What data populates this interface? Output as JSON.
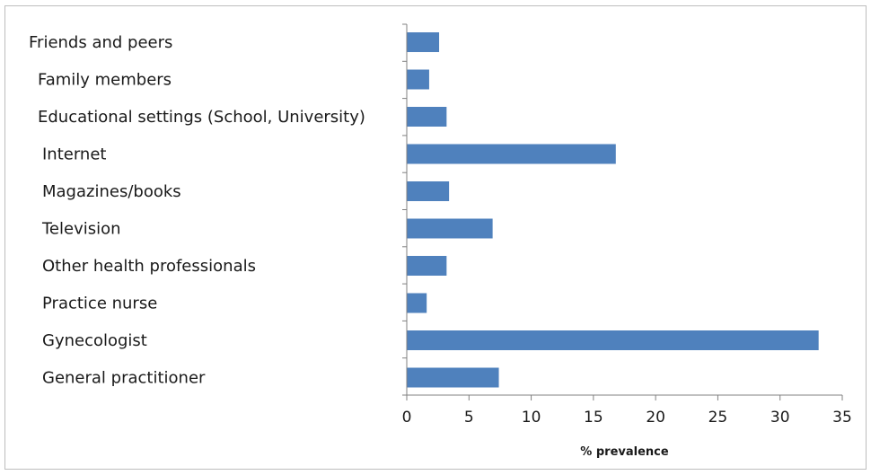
{
  "chart_data": {
    "type": "bar",
    "orientation": "horizontal",
    "categories": [
      "Friends and peers",
      "Family members",
      "Educational settings (School, University)",
      "Internet",
      "Magazines/books",
      "Television",
      "Other health professionals",
      "Practice nurse",
      "Gynecologist",
      "General practitioner"
    ],
    "values": [
      2.6,
      1.8,
      3.2,
      16.8,
      3.4,
      6.9,
      3.2,
      1.6,
      33.1,
      7.4
    ],
    "title": "",
    "xlabel": "% prevalence",
    "ylabel": "",
    "xlim": [
      0,
      35
    ],
    "xticks": [
      "0",
      "5",
      "10",
      "15",
      "20",
      "25",
      "30",
      "35"
    ],
    "grid": false,
    "legend": "none",
    "bar_color": "#4f81bd",
    "axis_color": "#808080"
  }
}
